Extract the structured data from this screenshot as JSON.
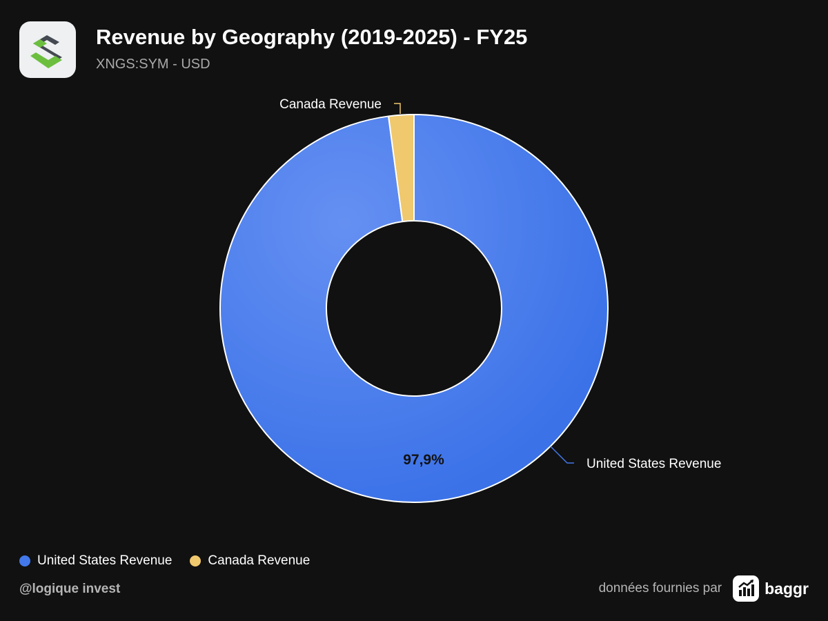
{
  "header": {
    "title": "Revenue by Geography (2019-2025) - FY25",
    "subtitle": "XNGS:SYM - USD",
    "logo_icon": "company-logo-s-icon"
  },
  "chart_data": {
    "type": "pie",
    "donut": true,
    "categories": [
      "United States Revenue",
      "Canada Revenue"
    ],
    "values": [
      97.9,
      2.1
    ],
    "unit": "%",
    "colors": [
      "#4278ea",
      "#f0c86e"
    ],
    "data_labels": [
      "97,9%",
      ""
    ],
    "legend_position": "bottom-left"
  },
  "legend": {
    "items": [
      {
        "label": "United States Revenue",
        "color": "#4278ea"
      },
      {
        "label": "Canada Revenue",
        "color": "#f0c86e"
      }
    ]
  },
  "footer": {
    "handle": "@logique invest",
    "provided_by": "données fournies par",
    "brand": "baggr",
    "brand_icon": "bar-chart-arrow-icon"
  }
}
